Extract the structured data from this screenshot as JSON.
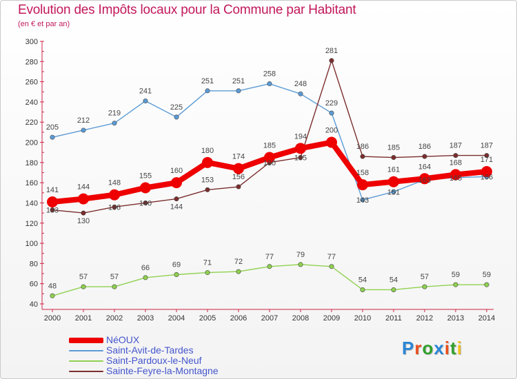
{
  "header": {
    "title": "Evolution des Impôts locaux pour la Commune par Habitant",
    "subtitle": "(en € et par an)"
  },
  "branding": {
    "text": "Proxiti",
    "colors": [
      "#2a86d6",
      "#e94e1b",
      "#33a02c",
      "#2a86d6",
      "#e94e1b",
      "#33a02c",
      "#f0c020"
    ]
  },
  "chart_data": {
    "type": "line",
    "title": "Evolution des Impôts locaux pour la Commune par Habitant",
    "subtitle": "(en € et par an)",
    "xlabel": "",
    "ylabel": "",
    "x": [
      "2000",
      "2001",
      "2002",
      "2003",
      "2004",
      "2005",
      "2006",
      "2007",
      "2008",
      "2009",
      "2010",
      "2011",
      "2012",
      "2013",
      "2014"
    ],
    "y_ticks": [
      40,
      60,
      80,
      100,
      120,
      140,
      160,
      180,
      200,
      220,
      240,
      260,
      280,
      300
    ],
    "ylim": [
      40,
      300
    ],
    "grid": false,
    "legend_position": "bottom-left",
    "series": [
      {
        "name": "Saint-Avit-de-Tardes",
        "color": "#5b9bd5",
        "values": [
          205,
          212,
          219,
          241,
          225,
          251,
          251,
          258,
          248,
          229,
          143,
          151,
          163,
          165,
          166
        ],
        "labels": [
          "205",
          "212",
          "219",
          "241",
          "225",
          "251",
          "251",
          "258",
          "248",
          "229",
          "143",
          "151",
          "163",
          "165",
          "166"
        ],
        "label_pos": [
          "above",
          "above",
          "above",
          "above",
          "above",
          "above",
          "above",
          "above",
          "above",
          "above",
          "inside",
          "inside",
          "inside",
          "inside",
          "inside"
        ]
      },
      {
        "name": "Saint-Pardoux-le-Neuf",
        "color": "#8fd14f",
        "values": [
          48,
          57,
          57,
          66,
          69,
          71,
          72,
          77,
          79,
          77,
          54,
          54,
          57,
          59,
          59
        ],
        "labels": [
          "48",
          "57",
          "57",
          "66",
          "69",
          "71",
          "72",
          "77",
          "79",
          "77",
          "54",
          "54",
          "57",
          "59",
          "59"
        ],
        "label_pos": [
          "above",
          "above",
          "above",
          "above",
          "above",
          "above",
          "above",
          "above",
          "above",
          "above",
          "above",
          "above",
          "above",
          "above",
          "above"
        ]
      },
      {
        "name": "Sainte-Feyre-la-Montagne",
        "color": "#7b2d2d",
        "values": [
          133,
          130,
          136,
          140,
          144,
          153,
          156,
          180,
          185,
          281,
          186,
          185,
          186,
          187,
          187
        ],
        "labels": [
          "133",
          "130",
          "136",
          "140",
          "144",
          "153",
          "156",
          "180",
          "185",
          "281",
          "186",
          "185",
          "186",
          "187",
          "187"
        ],
        "label_pos": [
          "inside",
          "below",
          "inside",
          "inside",
          "below",
          "above",
          "above",
          "inside",
          "inside",
          "above",
          "above",
          "above",
          "above",
          "above",
          "above"
        ]
      },
      {
        "name": "NéOUX",
        "color": "#ee0000",
        "values": [
          141,
          144,
          148,
          155,
          160,
          180,
          174,
          185,
          194,
          200,
          158,
          161,
          164,
          168,
          171
        ],
        "labels": [
          "141",
          "144",
          "148",
          "155",
          "160",
          "180",
          "174",
          "185",
          "194",
          "200",
          "158",
          "161",
          "164",
          "168",
          "171"
        ],
        "label_pos": [
          "above",
          "above",
          "above",
          "above",
          "above",
          "above",
          "above",
          "above",
          "above",
          "above",
          "above",
          "above",
          "above",
          "above",
          "above"
        ]
      }
    ],
    "legend_order": [
      "NéOUX",
      "Saint-Avit-de-Tardes",
      "Saint-Pardoux-le-Neuf",
      "Sainte-Feyre-la-Montagne"
    ]
  }
}
